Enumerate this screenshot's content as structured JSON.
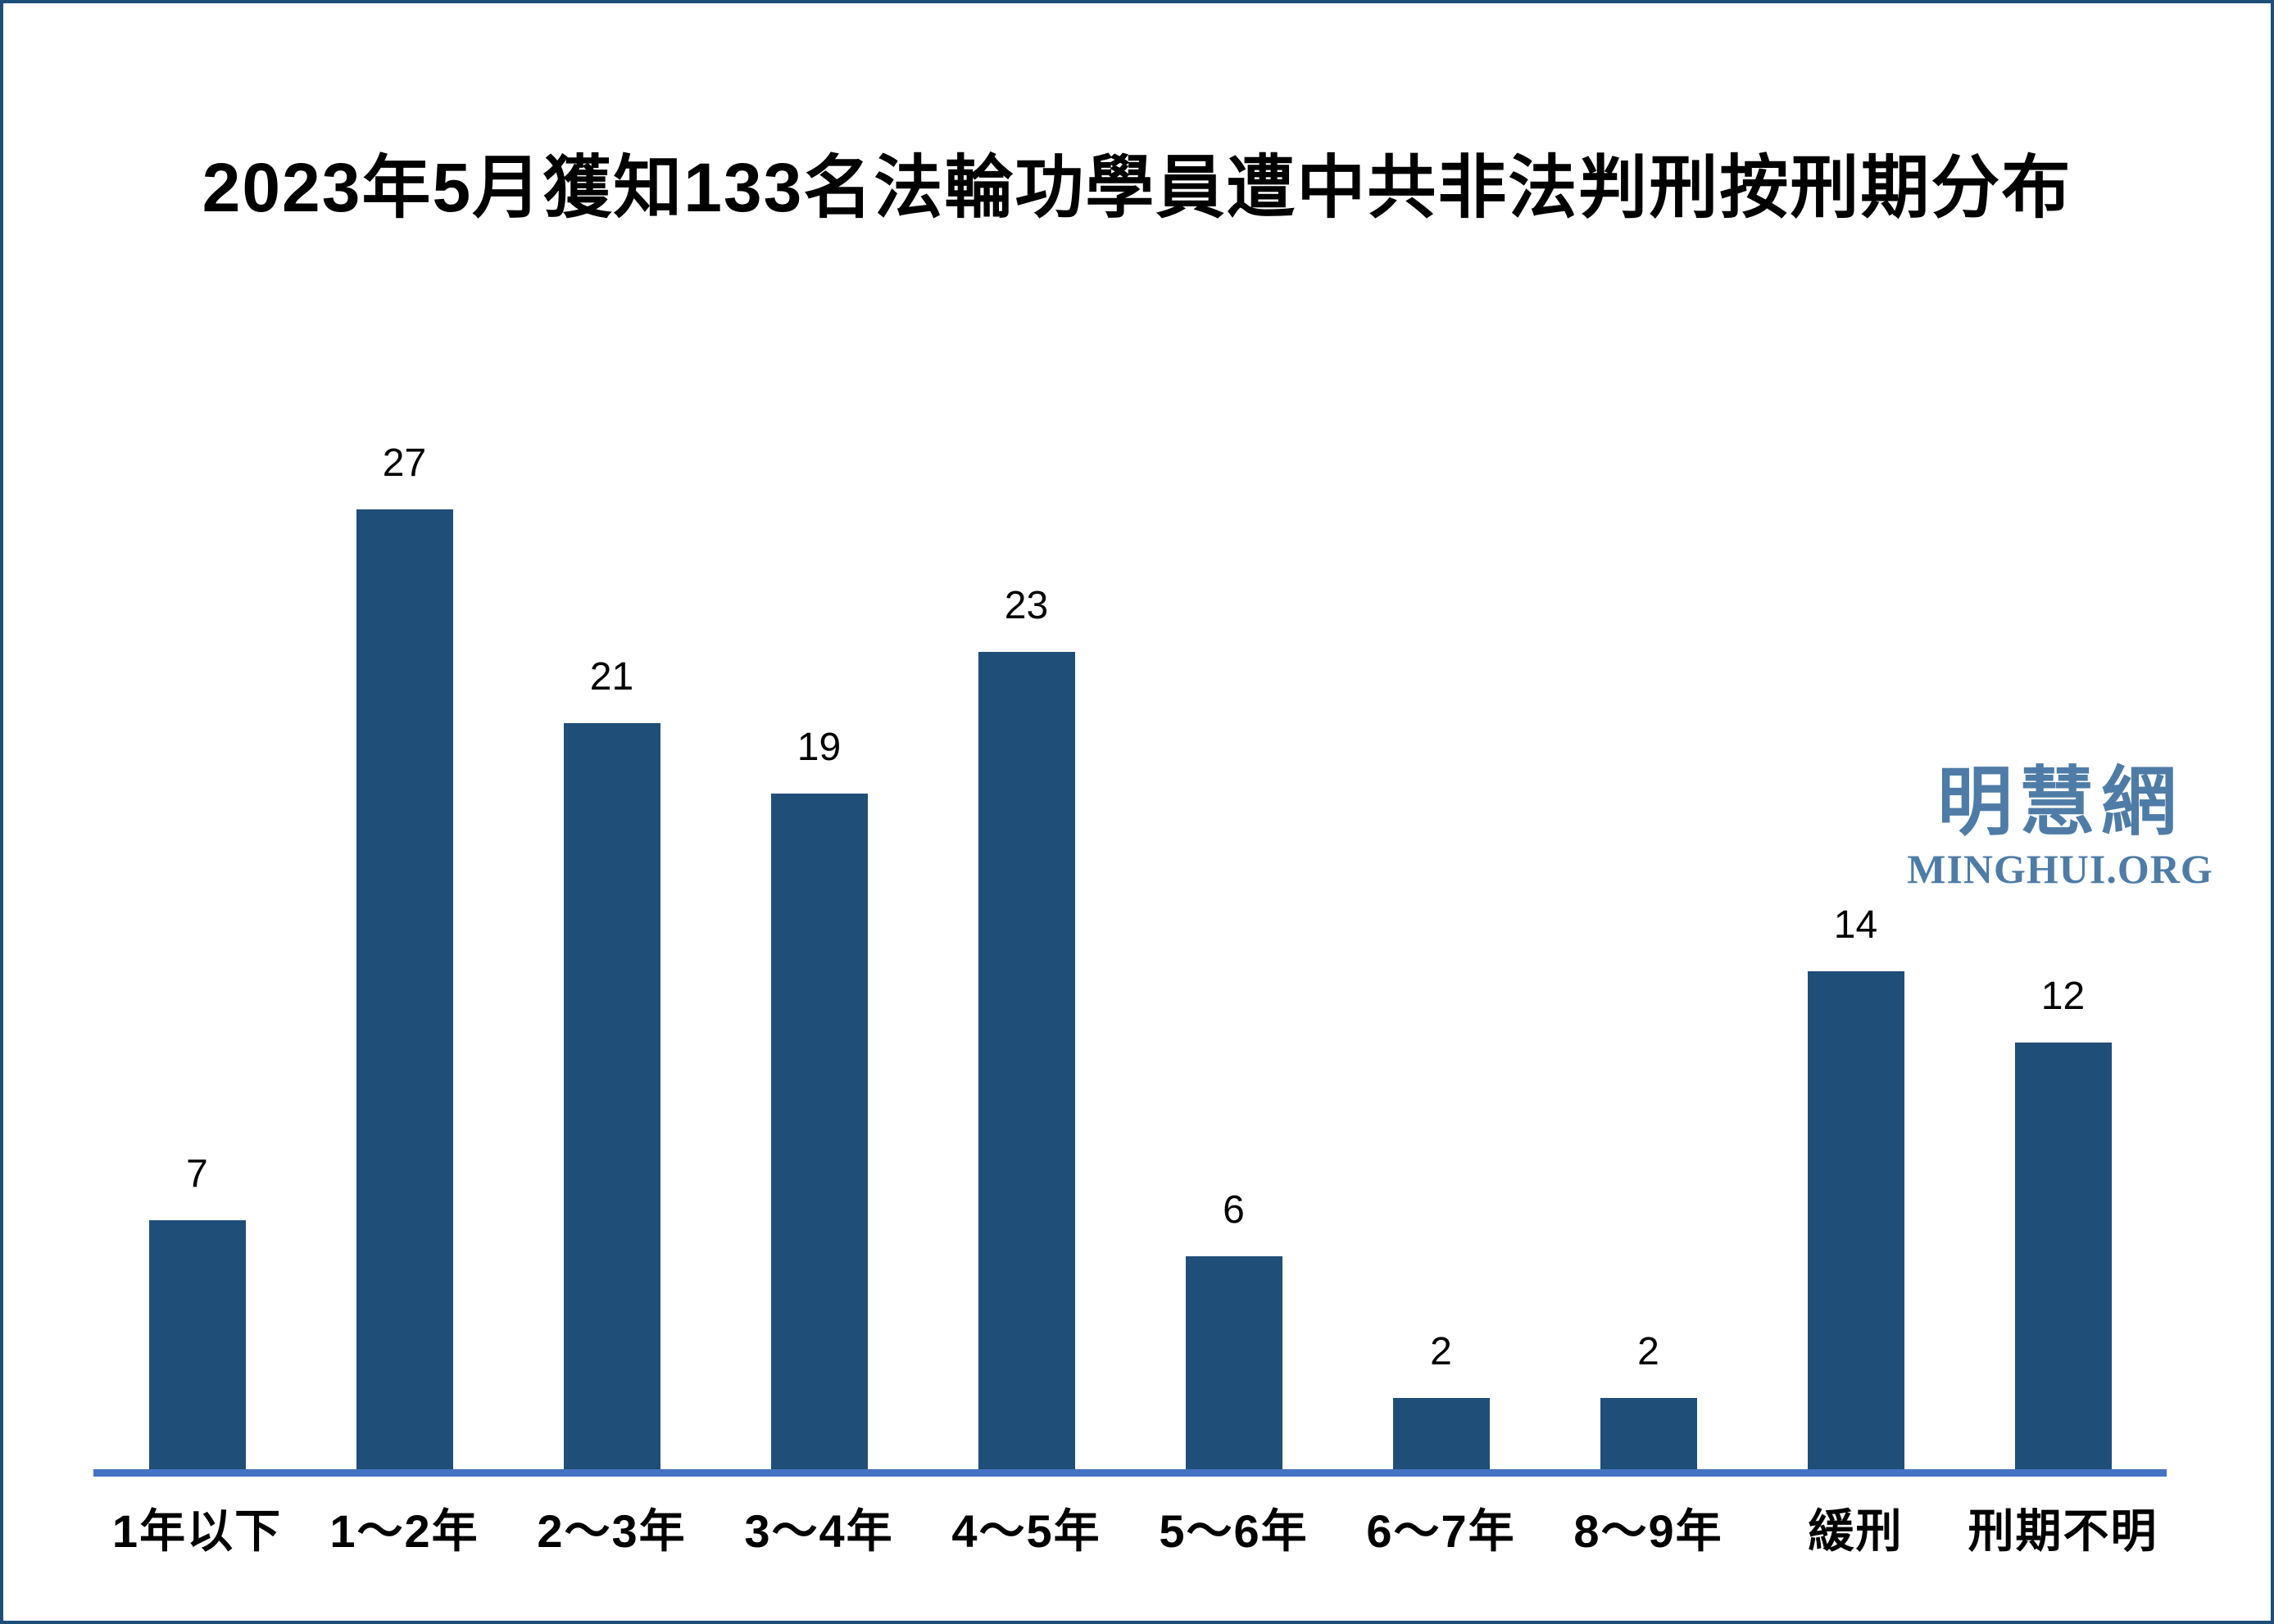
{
  "page": {
    "title": "2023年5月獲知133名法輪功學員遭中共非法判刑按刑期分布",
    "border_color": "#1F4E79",
    "background_color": "#FFFFFF"
  },
  "watermark": {
    "cjk": "明慧網",
    "latin": "MINGHUI.ORG",
    "color": "#4E7CA6"
  },
  "chart_data": {
    "type": "bar",
    "title": "2023年5月獲知133名法輪功學員遭中共非法判刑按刑期分布",
    "categories": [
      "1年以下",
      "1～2年",
      "2～3年",
      "3～4年",
      "4～5年",
      "5～6年",
      "6～7年",
      "8～9年",
      "緩刑",
      "刑期不明"
    ],
    "values": [
      7,
      27,
      21,
      19,
      23,
      6,
      2,
      2,
      14,
      12
    ],
    "xlabel": "",
    "ylabel": "",
    "ylim": [
      0,
      28
    ],
    "grid": false,
    "legend_position": "none",
    "value_labels_shown": true,
    "bar_color": "#1F4E79",
    "axis_line_color": "#4472C4",
    "value_label_color": "#000000",
    "category_label_color": "#000000"
  }
}
